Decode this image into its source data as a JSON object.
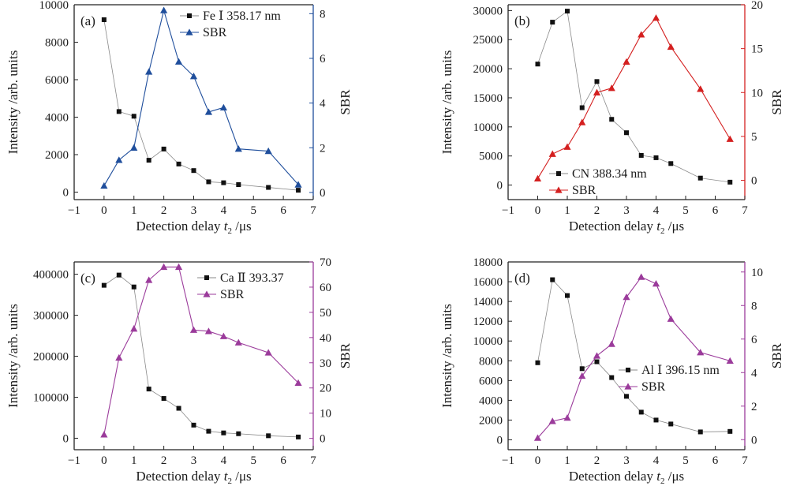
{
  "figure": {
    "description_free": true
  },
  "chart_data": [
    {
      "type": "line",
      "panel_label": "(a)",
      "xlabel": "Detection delay t2 /μs",
      "xlabel_main": "Detection delay ",
      "xlabel_var": "t",
      "xlabel_sub": "2",
      "xlabel_unit": " /μs",
      "ylabel_left": "Intensity /arb. units",
      "ylabel_right": "SBR",
      "xlim": [
        -1,
        7
      ],
      "xticks": [
        -1,
        0,
        1,
        2,
        3,
        4,
        5,
        6,
        7
      ],
      "ylim_left": [
        -400,
        10000
      ],
      "yticks_left": [
        0,
        2000,
        4000,
        6000,
        8000,
        10000
      ],
      "ylim_right": [
        -0.32,
        8.4
      ],
      "yticks_right": [
        0,
        2,
        4,
        6,
        8
      ],
      "right_axis_color": "#1f4e9c",
      "legend_position": "top-right",
      "x": [
        0,
        0.5,
        1,
        1.5,
        2,
        2.5,
        3,
        3.5,
        4,
        4.5,
        5.5,
        6.5
      ],
      "series": [
        {
          "name": "Fe Ⅰ 358.17 nm",
          "axis": "left",
          "marker": "square",
          "color": "#111111",
          "line_color": "#8a8a8a",
          "values": [
            9200,
            4300,
            4050,
            1700,
            2300,
            1500,
            1150,
            550,
            500,
            400,
            250,
            100
          ]
        },
        {
          "name": "SBR",
          "axis": "right",
          "marker": "triangle",
          "color": "#1f4e9c",
          "line_color": "#1f4e9c",
          "values": [
            0.3,
            1.45,
            2.0,
            5.4,
            8.15,
            5.85,
            5.2,
            3.6,
            3.8,
            1.95,
            1.85,
            0.35
          ]
        }
      ]
    },
    {
      "type": "line",
      "panel_label": "(b)",
      "xlabel": "Detection delay t2 /μs",
      "xlabel_main": "Detection delay ",
      "xlabel_var": "t",
      "xlabel_sub": "2",
      "xlabel_unit": " /μs",
      "ylabel_left": "Intensity /arb. units",
      "ylabel_right": "SBR",
      "xlim": [
        -1,
        7
      ],
      "xticks": [
        -1,
        0,
        1,
        2,
        3,
        4,
        5,
        6,
        7
      ],
      "ylim_left": [
        -2500,
        31000
      ],
      "yticks_left": [
        0,
        5000,
        10000,
        15000,
        20000,
        25000,
        30000
      ],
      "ylim_right": [
        -2.2,
        20
      ],
      "yticks_right": [
        0,
        5,
        10,
        15,
        20
      ],
      "right_axis_color": "#d42020",
      "legend_position": "lower-middle",
      "x": [
        0,
        0.5,
        1,
        1.5,
        2,
        2.5,
        3,
        3.5,
        4,
        4.5,
        5.5,
        6.5
      ],
      "series": [
        {
          "name": "CN 388.34 nm",
          "axis": "left",
          "marker": "square",
          "color": "#111111",
          "line_color": "#8a8a8a",
          "values": [
            20800,
            28000,
            29900,
            13300,
            17800,
            11300,
            9000,
            5100,
            4700,
            3700,
            1200,
            500
          ]
        },
        {
          "name": "SBR",
          "axis": "right",
          "marker": "triangle",
          "color": "#d42020",
          "line_color": "#d42020",
          "values": [
            0.2,
            3.0,
            3.8,
            6.6,
            10.0,
            10.5,
            13.5,
            16.6,
            18.5,
            15.2,
            10.4,
            4.7
          ]
        }
      ]
    },
    {
      "type": "line",
      "panel_label": "(c)",
      "xlabel": "Detection delay t2 /μs",
      "xlabel_main": "Detection delay ",
      "xlabel_var": "t",
      "xlabel_sub": "2",
      "xlabel_unit": " /μs",
      "ylabel_left": "Intensity /arb. units",
      "ylabel_right": "SBR",
      "xlim": [
        -1,
        7
      ],
      "xticks": [
        -1,
        0,
        1,
        2,
        3,
        4,
        5,
        6,
        7
      ],
      "ylim_left": [
        -28000,
        430000
      ],
      "yticks_left": [
        0,
        100000,
        200000,
        300000,
        400000
      ],
      "ylim_right": [
        -4.5,
        70
      ],
      "yticks_right": [
        0,
        10,
        20,
        30,
        40,
        50,
        60,
        70
      ],
      "right_axis_color": "#9b3b9b",
      "legend_position": "top-right",
      "x": [
        0,
        0.5,
        1,
        1.5,
        2,
        2.5,
        3,
        3.5,
        4,
        4.5,
        5.5,
        6.5
      ],
      "series": [
        {
          "name": "Ca Ⅱ 393.37",
          "axis": "left",
          "marker": "square",
          "color": "#111111",
          "line_color": "#8a8a8a",
          "values": [
            373000,
            398000,
            369000,
            120000,
            97000,
            73000,
            32000,
            17000,
            13000,
            11000,
            6000,
            3000
          ]
        },
        {
          "name": "SBR",
          "axis": "right",
          "marker": "triangle",
          "color": "#9b3b9b",
          "line_color": "#9b3b9b",
          "values": [
            1.5,
            32.0,
            43.5,
            62.8,
            68.0,
            68.0,
            43.0,
            42.5,
            40.5,
            38.0,
            34.0,
            22.0
          ]
        }
      ]
    },
    {
      "type": "line",
      "panel_label": "(d)",
      "xlabel": "Detection delay t2 /μs",
      "xlabel_main": "Detection delay ",
      "xlabel_var": "t",
      "xlabel_sub": "2",
      "xlabel_unit": " /μs",
      "ylabel_left": "Intensity /arb. units",
      "ylabel_right": "SBR",
      "xlim": [
        -1,
        7
      ],
      "xticks": [
        -1,
        0,
        1,
        2,
        3,
        4,
        5,
        6,
        7
      ],
      "ylim_left": [
        -1000,
        18000
      ],
      "yticks_left": [
        0,
        2000,
        4000,
        6000,
        8000,
        10000,
        12000,
        14000,
        16000,
        18000
      ],
      "ylim_right": [
        -0.6,
        10.6
      ],
      "yticks_right": [
        0,
        2,
        4,
        6,
        8,
        10
      ],
      "right_axis_color": "#9b3b9b",
      "legend_position": "lower-right",
      "x": [
        0,
        0.5,
        1,
        1.5,
        2,
        2.5,
        3,
        3.5,
        4,
        4.5,
        5.5,
        6.5
      ],
      "series": [
        {
          "name": "Al Ⅰ 396.15 nm",
          "axis": "left",
          "marker": "square",
          "color": "#111111",
          "line_color": "#8a8a8a",
          "values": [
            7800,
            16200,
            14600,
            7200,
            7900,
            6300,
            4400,
            2800,
            2000,
            1600,
            800,
            850
          ]
        },
        {
          "name": "SBR",
          "axis": "right",
          "marker": "triangle",
          "color": "#9b3b9b",
          "line_color": "#9b3b9b",
          "values": [
            0.1,
            1.1,
            1.3,
            3.8,
            5.0,
            5.7,
            8.5,
            9.7,
            9.3,
            7.2,
            5.2,
            4.7
          ]
        }
      ]
    }
  ]
}
